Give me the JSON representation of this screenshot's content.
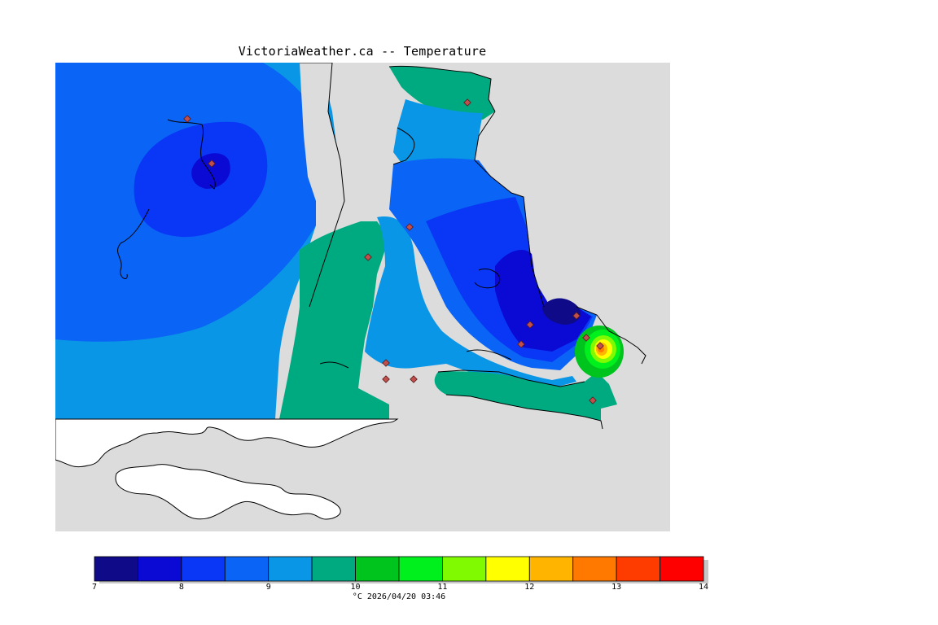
{
  "title": "VictoriaWeather.ca -- Temperature",
  "caption": "°C  2026/04/20 03:46",
  "legend": {
    "ticks": [
      "7",
      "8",
      "9",
      "10",
      "11",
      "12",
      "13",
      "14"
    ],
    "colors": [
      "#0f0a87",
      "#0a0ad4",
      "#0a37f5",
      "#0a64f5",
      "#0a96e6",
      "#00aa80",
      "#00c41e",
      "#00f01e",
      "#7ffa00",
      "#ffff00",
      "#ffb400",
      "#ff7800",
      "#ff3c00",
      "#ff0000"
    ]
  }
}
